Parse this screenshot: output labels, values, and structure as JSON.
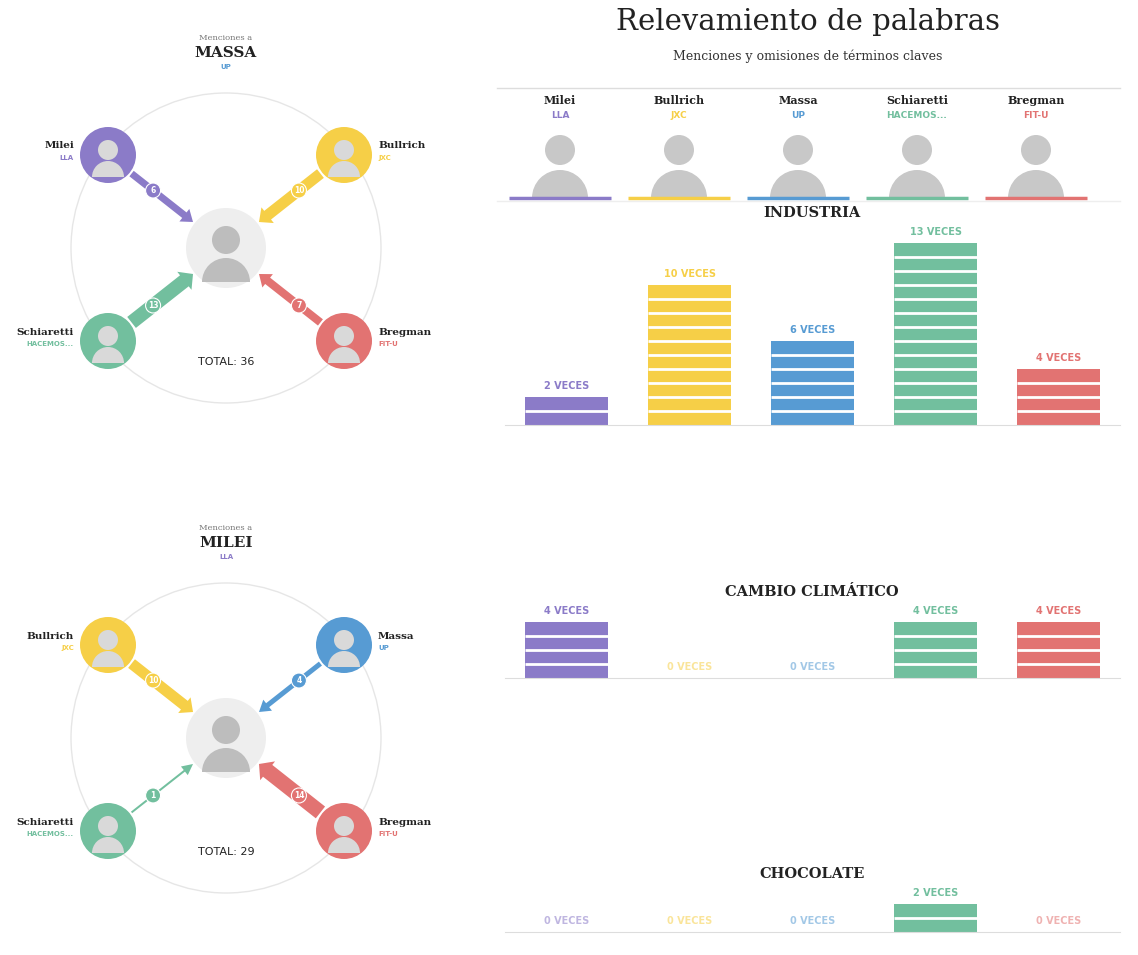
{
  "title": "Relevamiento de palabras",
  "subtitle": "Menciones y omisiones de términos claves",
  "candidates": [
    {
      "name": "Milei",
      "party": "LLA",
      "color": "#8b7bc8"
    },
    {
      "name": "Bullrich",
      "party": "JXC",
      "color": "#f6cf47"
    },
    {
      "name": "Massa",
      "party": "UP",
      "color": "#579bd3"
    },
    {
      "name": "Schiaretti",
      "party": "HACEMOS...",
      "color": "#72bf9e"
    },
    {
      "name": "Bregman",
      "party": "FIT-U",
      "color": "#e27372"
    }
  ],
  "mention_diagrams": [
    {
      "heading": "Menciones a",
      "target": "MASSA",
      "target_party": "UP",
      "target_color": "#579bd3",
      "mentions": [
        {
          "name": "Milei",
          "count": 6
        },
        {
          "name": "Bullrich",
          "count": 10
        },
        {
          "name": "Schiaretti",
          "count": 13
        },
        {
          "name": "Bregman",
          "count": 7
        }
      ],
      "total_label": "TOTAL: 36"
    },
    {
      "heading": "Menciones a",
      "target": "MILEI",
      "target_party": "LLA",
      "target_color": "#8b7bc8",
      "mentions": [
        {
          "name": "Bullrich",
          "count": 10
        },
        {
          "name": "Massa",
          "count": 4
        },
        {
          "name": "Schiaretti",
          "count": 1
        },
        {
          "name": "Bregman",
          "count": 14
        }
      ],
      "total_label": "TOTAL: 29"
    }
  ],
  "chart_data": [
    {
      "type": "bar",
      "title": "INDUSTRIA",
      "categories": [
        "Milei",
        "Bullrich",
        "Massa",
        "Schiaretti",
        "Bregman"
      ],
      "values": [
        2,
        10,
        6,
        13,
        4
      ],
      "value_labels": [
        "2 VECES",
        "10 VECES",
        "6 VECES",
        "13 VECES",
        "4 VECES"
      ],
      "ylim": [
        0,
        13
      ],
      "data_labels": true,
      "tick_labels": false
    },
    {
      "type": "bar",
      "title": "CAMBIO CLIMÁTICO",
      "categories": [
        "Milei",
        "Bullrich",
        "Massa",
        "Schiaretti",
        "Bregman"
      ],
      "values": [
        4,
        0,
        0,
        4,
        4
      ],
      "value_labels": [
        "4 VECES",
        "0 VECES",
        "0 VECES",
        "4 VECES",
        "4 VECES"
      ],
      "ylim": [
        0,
        4
      ],
      "data_labels": true,
      "tick_labels": false
    },
    {
      "type": "bar",
      "title": "CHOCOLATE",
      "categories": [
        "Milei",
        "Bullrich",
        "Massa",
        "Schiaretti",
        "Bregman"
      ],
      "values": [
        0,
        0,
        0,
        2,
        0
      ],
      "value_labels": [
        "0 VECES",
        "0 VECES",
        "0 VECES",
        "2 VECES",
        "0 VECES"
      ],
      "ylim": [
        0,
        2
      ],
      "data_labels": true,
      "tick_labels": false
    }
  ]
}
